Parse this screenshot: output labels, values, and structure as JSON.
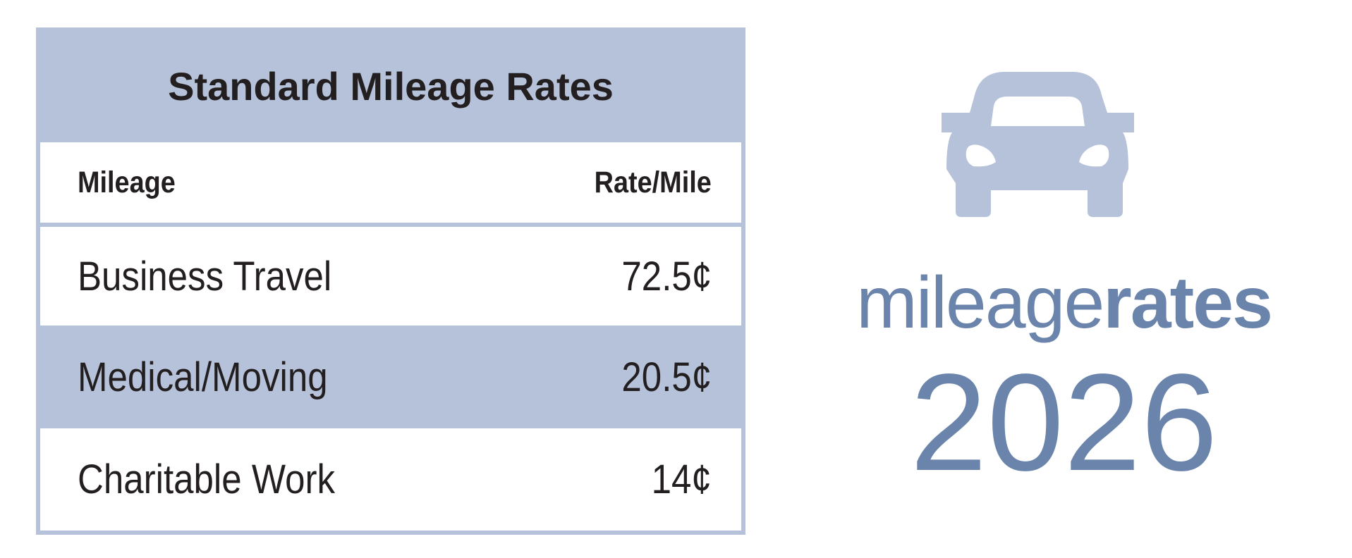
{
  "table": {
    "title": "Standard Mileage Rates",
    "columns": [
      "Mileage",
      "Rate/Mile"
    ],
    "rows": [
      {
        "label": "Business Travel",
        "rate": "72.5¢"
      },
      {
        "label": "Medical/Moving",
        "rate": "20.5¢"
      },
      {
        "label": "Charitable Work",
        "rate": "14¢"
      }
    ]
  },
  "brand": {
    "icon": "car-icon",
    "word_light": "mileage",
    "word_bold": "rates",
    "year": "2026"
  },
  "colors": {
    "table_accent": "#b5c2d9",
    "brand_text": "#6a84ab",
    "icon": "#b5c2d9"
  }
}
